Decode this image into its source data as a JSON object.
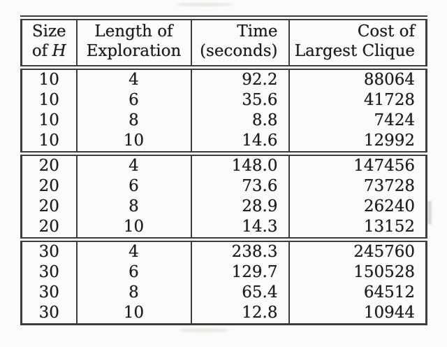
{
  "page": {
    "colors": {
      "paper": "#fbfbf9",
      "ink": "#1d1d1d",
      "rule": "#3c3c3c"
    }
  },
  "table": {
    "headers": {
      "size_line1": "Size",
      "size_line2_text": "of",
      "size_line2_var": "H",
      "length_line1": "Length of",
      "length_line2": "Exploration",
      "time_line1": "Time",
      "time_line2": "(seconds)",
      "cost_line1": "Cost of",
      "cost_line2": "Largest Clique"
    },
    "rows": [
      {
        "size": "10",
        "length": "4",
        "time": "92.2",
        "cost": "88064"
      },
      {
        "size": "10",
        "length": "6",
        "time": "35.6",
        "cost": "41728"
      },
      {
        "size": "10",
        "length": "8",
        "time": "8.8",
        "cost": "7424"
      },
      {
        "size": "10",
        "length": "10",
        "time": "14.6",
        "cost": "12992"
      },
      {
        "size": "20",
        "length": "4",
        "time": "148.0",
        "cost": "147456"
      },
      {
        "size": "20",
        "length": "6",
        "time": "73.6",
        "cost": "73728"
      },
      {
        "size": "20",
        "length": "8",
        "time": "28.9",
        "cost": "26240"
      },
      {
        "size": "20",
        "length": "10",
        "time": "14.3",
        "cost": "13152"
      },
      {
        "size": "30",
        "length": "4",
        "time": "238.3",
        "cost": "245760"
      },
      {
        "size": "30",
        "length": "6",
        "time": "129.7",
        "cost": "150528"
      },
      {
        "size": "30",
        "length": "8",
        "time": "65.4",
        "cost": "64512"
      },
      {
        "size": "30",
        "length": "10",
        "time": "12.8",
        "cost": "10944"
      }
    ]
  }
}
